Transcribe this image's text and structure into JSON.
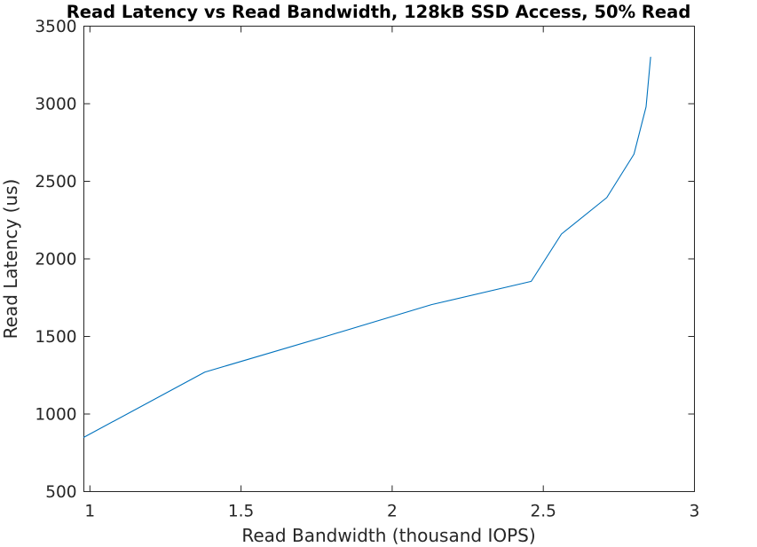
{
  "chart_data": {
    "type": "line",
    "title": "Read Latency vs Read Bandwidth, 128kB SSD Access, 50% Read",
    "xlabel": "Read Bandwidth (thousand IOPS)",
    "ylabel": "Read Latency (us)",
    "xlim": [
      0.98,
      3.0
    ],
    "ylim": [
      500,
      3500
    ],
    "xticks": [
      1,
      1.5,
      2,
      2.5,
      3
    ],
    "xtick_labels": [
      "1",
      "1.5",
      "2",
      "2.5",
      "3"
    ],
    "yticks": [
      500,
      1000,
      1500,
      2000,
      2500,
      3000,
      3500
    ],
    "ytick_labels": [
      "500",
      "1000",
      "1500",
      "2000",
      "2500",
      "3000",
      "3500"
    ],
    "grid": false,
    "series": [
      {
        "color": "#0072bd",
        "x": [
          0.98,
          1.38,
          1.78,
          2.13,
          2.46,
          2.56,
          2.71,
          2.8,
          2.84,
          2.855
        ],
        "y": [
          850,
          1270,
          1500,
          1705,
          1855,
          2160,
          2395,
          2675,
          2980,
          3300
        ]
      }
    ]
  }
}
